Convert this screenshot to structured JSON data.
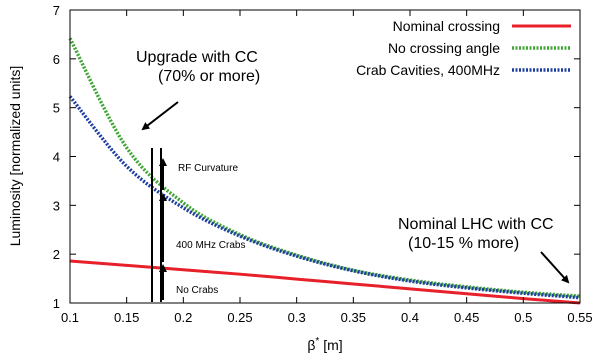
{
  "chart_data": {
    "type": "line",
    "xlabel": "β* [m]",
    "xlabel_main": "β",
    "xlabel_sup": "*",
    "xlabel_unit": " [m]",
    "ylabel": "Luminosity  [normalized units]",
    "xlim": [
      0.1,
      0.55
    ],
    "ylim": [
      1,
      7
    ],
    "grid": false,
    "legend_position": "top-right",
    "x_ticks": [
      0.1,
      0.15,
      0.2,
      0.25,
      0.3,
      0.35,
      0.4,
      0.45,
      0.5,
      0.55
    ],
    "x_tick_labels": [
      "0.1",
      "0.15",
      "0.2",
      "0.25",
      "0.3",
      "0.35",
      "0.4",
      "0.45",
      "0.5",
      "0.55"
    ],
    "y_ticks": [
      1,
      2,
      3,
      4,
      5,
      6,
      7
    ],
    "y_tick_labels": [
      "1",
      "2",
      "3",
      "4",
      "5",
      "6",
      "7"
    ],
    "series": [
      {
        "name": "Nominal crossing",
        "color": "#e8202a",
        "style": "solid",
        "x": [
          0.1,
          0.15,
          0.2,
          0.25,
          0.3,
          0.35,
          0.4,
          0.45,
          0.5,
          0.55
        ],
        "y": [
          1.86,
          1.77,
          1.68,
          1.59,
          1.49,
          1.39,
          1.29,
          1.19,
          1.09,
          1.0
        ]
      },
      {
        "name": "No crossing angle",
        "color": "#3fa535",
        "style": "dotted",
        "x": [
          0.1,
          0.15,
          0.2,
          0.25,
          0.3,
          0.35,
          0.4,
          0.45,
          0.5,
          0.55
        ],
        "y": [
          6.42,
          4.18,
          3.05,
          2.4,
          1.98,
          1.67,
          1.47,
          1.33,
          1.22,
          1.14
        ]
      },
      {
        "name": "Crab Cavities, 400MHz",
        "color": "#1f3fa0",
        "style": "dotted",
        "x": [
          0.1,
          0.15,
          0.2,
          0.25,
          0.3,
          0.35,
          0.4,
          0.45,
          0.5,
          0.55
        ],
        "y": [
          5.23,
          3.8,
          2.95,
          2.37,
          1.96,
          1.66,
          1.45,
          1.31,
          1.2,
          1.11
        ]
      }
    ],
    "annotations": {
      "upgrade_line1": "Upgrade with CC",
      "upgrade_line2": "(70% or more)",
      "nominal_line1": "Nominal LHC with CC",
      "nominal_line2": "(10-15 % more)",
      "rf_curvature": "RF Curvature",
      "crabs_400": "400 MHz Crabs",
      "no_crabs": "No Crabs"
    }
  }
}
